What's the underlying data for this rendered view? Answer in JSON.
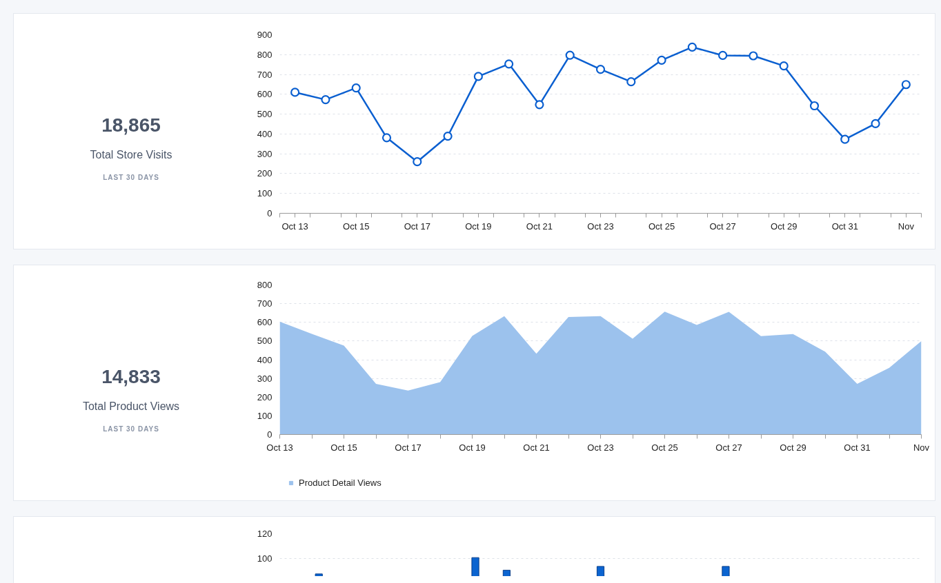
{
  "chart_data": [
    {
      "type": "line",
      "annotations": [
        "18,865",
        "Total Store Visits",
        "LAST 30 DAYS"
      ],
      "categories": [
        "Oct 13",
        null,
        "Oct 15",
        null,
        "Oct 17",
        null,
        "Oct 19",
        null,
        "Oct 21",
        null,
        "Oct 23",
        null,
        "Oct 25",
        null,
        "Oct 27",
        null,
        "Oct 29",
        null,
        "Oct 31",
        null,
        "Nov"
      ],
      "series": [
        {
          "color": "#0a5fd0",
          "values": [
            610,
            573,
            632,
            381,
            260,
            389,
            690,
            753,
            548,
            797,
            726,
            663,
            772,
            838,
            796,
            794,
            743,
            542,
            373,
            452,
            649
          ]
        }
      ],
      "ylim": [
        0,
        900
      ],
      "yticks": [
        0,
        100,
        200,
        300,
        400,
        500,
        600,
        700,
        800,
        900
      ],
      "grid": "y",
      "marker": "circle",
      "line_style": "solid"
    },
    {
      "type": "area",
      "annotations": [
        "14,833",
        "Total Product Views",
        "LAST 30 DAYS"
      ],
      "categories": [
        "Oct 13",
        null,
        "Oct 15",
        null,
        "Oct 17",
        null,
        "Oct 19",
        null,
        "Oct 21",
        null,
        "Oct 23",
        null,
        "Oct 25",
        null,
        "Oct 27",
        null,
        "Oct 29",
        null,
        "Oct 31",
        null,
        "Nov"
      ],
      "series": [
        {
          "name": "Product Detail Views",
          "color": "#9cc2ed",
          "values": [
            604,
            538,
            476,
            271,
            235,
            280,
            527,
            633,
            432,
            629,
            633,
            512,
            657,
            586,
            656,
            526,
            537,
            443,
            271,
            357,
            500
          ]
        }
      ],
      "ylim": [
        0,
        800
      ],
      "yticks": [
        0,
        100,
        200,
        300,
        400,
        500,
        600,
        700,
        800
      ],
      "grid": "y",
      "legend": "bottom left"
    },
    {
      "type": "bar",
      "categories": [
        null,
        null,
        null,
        null,
        null,
        null,
        null,
        null,
        null,
        null,
        null,
        null,
        null,
        null,
        null,
        null,
        null,
        null,
        null,
        null,
        null,
        null,
        null,
        null,
        null,
        null,
        null,
        null,
        null,
        null,
        null,
        null,
        null,
        null,
        null,
        null,
        null,
        null,
        null,
        null,
        null
      ],
      "series": [
        {
          "color": "#0b64d0",
          "values": [
            null,
            null,
            88,
            null,
            null,
            null,
            null,
            null,
            null,
            null,
            null,
            null,
            101,
            null,
            91,
            null,
            null,
            null,
            null,
            null,
            94,
            null,
            null,
            null,
            null,
            null,
            null,
            null,
            94,
            null,
            null,
            null,
            null,
            null,
            null,
            null,
            null,
            null,
            null,
            null,
            null
          ]
        }
      ],
      "ylim": [
        86,
        120
      ],
      "yticks": [
        100,
        120
      ],
      "grid": "y",
      "tick_labels": "y"
    }
  ]
}
